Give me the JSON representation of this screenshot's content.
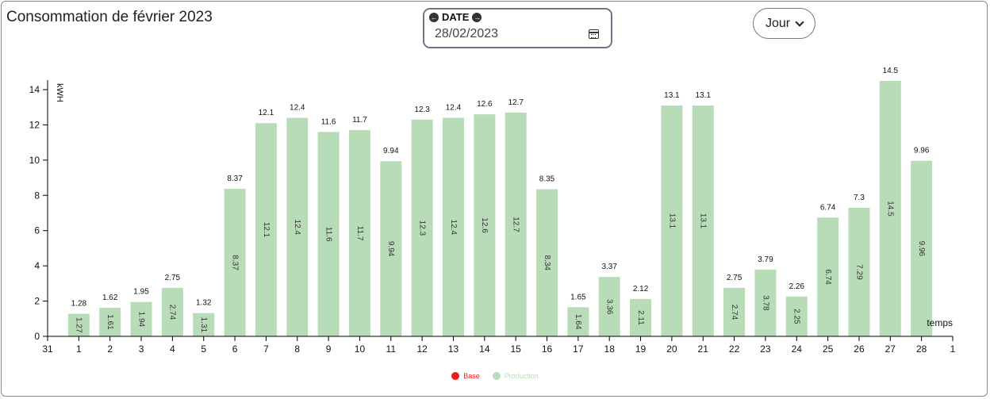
{
  "header": {
    "title": "Consommation de février 2023",
    "date_label": "DATE",
    "date_value": "28/02/2023",
    "prev_icon": "arrow-left-circle-icon",
    "next_icon": "arrow-right-circle-icon",
    "calendar_icon": "calendar-icon",
    "period_value": "Jour"
  },
  "chart_data": {
    "type": "bar",
    "ylabel": "kWH",
    "xlabel": "temps",
    "ylim": [
      0,
      14
    ],
    "yticks": [
      0,
      2,
      4,
      6,
      8,
      10,
      12,
      14
    ],
    "x_ticks": [
      "31",
      "1",
      "2",
      "3",
      "4",
      "5",
      "6",
      "7",
      "8",
      "9",
      "10",
      "11",
      "12",
      "13",
      "14",
      "15",
      "16",
      "17",
      "18",
      "19",
      "20",
      "21",
      "22",
      "23",
      "24",
      "25",
      "26",
      "27",
      "28",
      "1"
    ],
    "categories": [
      "1",
      "2",
      "3",
      "4",
      "5",
      "6",
      "7",
      "8",
      "9",
      "10",
      "11",
      "12",
      "13",
      "14",
      "15",
      "16",
      "17",
      "18",
      "19",
      "20",
      "21",
      "22",
      "23",
      "24",
      "25",
      "26",
      "27",
      "28"
    ],
    "top_labels": [
      "1.28",
      "1.62",
      "1.95",
      "2.75",
      "1.32",
      "8.37",
      "12.1",
      "12.4",
      "11.6",
      "11.7",
      "9.94",
      "12.3",
      "12.4",
      "12.6",
      "12.7",
      "8.35",
      "1.65",
      "3.37",
      "2.12",
      "13.1",
      "13.1",
      "2.75",
      "3.79",
      "2.26",
      "6.74",
      "7.3",
      "14.5",
      "9.96"
    ],
    "series": [
      {
        "name": "Production",
        "color": "#b9dcb8",
        "values": [
          1.28,
          1.62,
          1.95,
          2.75,
          1.32,
          8.37,
          12.1,
          12.4,
          11.6,
          11.7,
          9.94,
          12.3,
          12.4,
          12.6,
          12.7,
          8.35,
          1.65,
          3.37,
          2.12,
          13.1,
          13.1,
          2.75,
          3.79,
          2.26,
          6.74,
          7.3,
          14.5,
          9.96
        ],
        "inner_labels": [
          "1.27",
          "1.61",
          "1.94",
          "2.74",
          "1.31",
          "8.37",
          "12.1",
          "12.4",
          "11.6",
          "11.7",
          "9.94",
          "12.3",
          "12.4",
          "12.6",
          "12.7",
          "8.34",
          "1.64",
          "3.36",
          "2.11",
          "13.1",
          "13.1",
          "2.74",
          "3.78",
          "2.25",
          "6.74",
          "7.29",
          "14.5",
          "9.96"
        ]
      }
    ],
    "legend": [
      {
        "name": "Base",
        "color": "#ee1c1c"
      },
      {
        "name": "Production",
        "color": "#b9dcb8"
      }
    ],
    "legend_position": "bottom-center"
  }
}
